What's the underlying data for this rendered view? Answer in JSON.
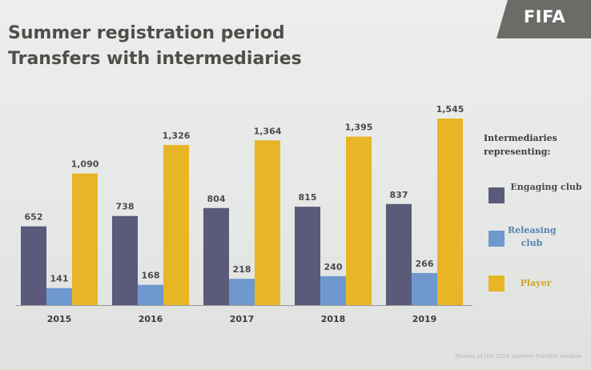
{
  "header": {
    "title_line1": "Summer registration period",
    "title_line2": "Transfers with intermediaries"
  },
  "logo": {
    "text": "FIFA",
    "color": "#6b6b68"
  },
  "legend": {
    "title": "Intermediaries representing:",
    "items": [
      {
        "label": "Engaging club",
        "color": "#5b5a7a",
        "text_color": "#4a4a4a"
      },
      {
        "label": "Releasing club",
        "color": "#6f98cf",
        "text_color": "#5582b4"
      },
      {
        "label": "Player",
        "color": "#e8b527",
        "text_color": "#cfa22b"
      }
    ]
  },
  "footer": {
    "text": "Review of the 2019 summer transfer window"
  },
  "chart_data": {
    "type": "bar",
    "categories": [
      "2015",
      "2016",
      "2017",
      "2018",
      "2019"
    ],
    "series": [
      {
        "name": "Engaging club",
        "values": [
          652,
          738,
          804,
          815,
          837
        ],
        "labels": [
          "652",
          "738",
          "804",
          "815",
          "837"
        ],
        "color": "#5b5a7a"
      },
      {
        "name": "Releasing club",
        "values": [
          141,
          168,
          218,
          240,
          266
        ],
        "labels": [
          "141",
          "168",
          "218",
          "240",
          "266"
        ],
        "color": "#6f98cf"
      },
      {
        "name": "Player",
        "values": [
          1090,
          1326,
          1364,
          1395,
          1545
        ],
        "labels": [
          "1,090",
          "1,326",
          "1,364",
          "1,395",
          "1,545"
        ],
        "color": "#e8b527"
      }
    ],
    "ylim": [
      0,
      1800
    ],
    "grid": false,
    "legend_position": "right"
  }
}
